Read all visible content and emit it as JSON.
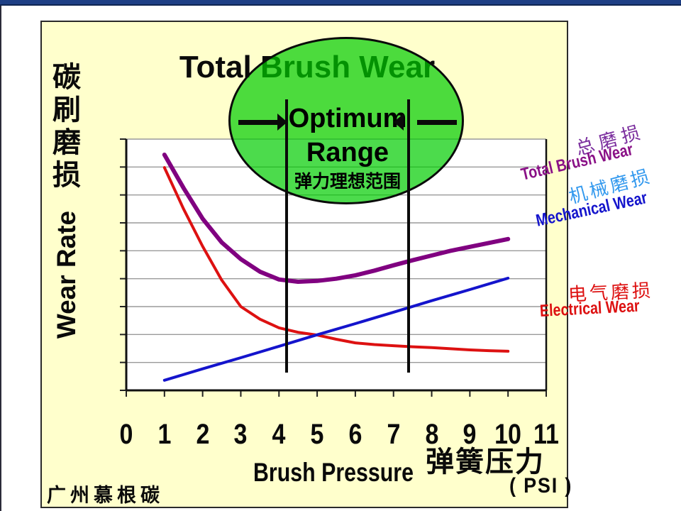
{
  "slide": {
    "title": "Total Brush Wear",
    "footer": "广州慕根碳",
    "colors": {
      "slide_bg": "#FFFFCC",
      "top_bar": "#1E3F85",
      "plot_bg": "#FFFFFF",
      "gridline": "#9A9A9A",
      "ellipse_fill": "rgba(0,204,0,0.70)"
    }
  },
  "y_axis": {
    "label_cn": "碳刷磨损",
    "label_en": "Wear Rate"
  },
  "x_axis": {
    "label_en": "Brush Pressure",
    "label_cn": "弹簧压力",
    "unit": "( PSI )"
  },
  "optimum": {
    "line1": "Optimum",
    "line2": "Range",
    "line3": "弹力理想范围"
  },
  "legend": [
    {
      "cn": "总磨损",
      "en": "Total Brush Wear",
      "color_cn": "#7B2E9E",
      "color_en": "#8A1187"
    },
    {
      "cn": "机械磨损",
      "en": "Mechanical Wear",
      "color_cn": "#3399EE",
      "color_en": "#1414CC"
    },
    {
      "cn": "电气磨损",
      "en": "Electrical Wear",
      "color_cn": "#DD1111",
      "color_en": "#DD1111"
    }
  ],
  "chart_data": {
    "type": "line",
    "title": "Total Brush Wear",
    "xlabel": "Brush Pressure ( PSI )",
    "ylabel": "Wear Rate",
    "xlim": [
      0,
      11
    ],
    "ylim": [
      0,
      9
    ],
    "x_ticks": [
      0,
      1,
      2,
      3,
      4,
      5,
      6,
      7,
      8,
      9,
      10,
      11
    ],
    "grid": "horizontal",
    "legend_position": "right",
    "optimum_range_x": [
      4.2,
      7.4
    ],
    "series": [
      {
        "name": "Total Brush Wear",
        "color": "#800080",
        "width": 6,
        "points": [
          [
            1,
            8.44
          ],
          [
            1.5,
            7.25
          ],
          [
            2,
            6.15
          ],
          [
            2.5,
            5.3
          ],
          [
            3,
            4.7
          ],
          [
            3.5,
            4.25
          ],
          [
            4,
            3.97
          ],
          [
            4.5,
            3.89
          ],
          [
            5,
            3.92
          ],
          [
            5.5,
            4.0
          ],
          [
            6,
            4.12
          ],
          [
            6.5,
            4.29
          ],
          [
            7,
            4.48
          ],
          [
            7.5,
            4.66
          ],
          [
            8,
            4.83
          ],
          [
            8.5,
            5.0
          ],
          [
            9,
            5.14
          ],
          [
            9.5,
            5.28
          ],
          [
            10,
            5.42
          ]
        ]
      },
      {
        "name": "Electrical Wear",
        "color": "#DD1111",
        "width": 4,
        "points": [
          [
            1,
            7.98
          ],
          [
            1.5,
            6.5
          ],
          [
            2,
            5.16
          ],
          [
            2.5,
            3.95
          ],
          [
            3,
            3.0
          ],
          [
            3.5,
            2.55
          ],
          [
            4,
            2.24
          ],
          [
            4.5,
            2.08
          ],
          [
            5,
            1.98
          ],
          [
            5.5,
            1.83
          ],
          [
            6,
            1.7
          ],
          [
            6.5,
            1.64
          ],
          [
            7,
            1.6
          ],
          [
            7.5,
            1.56
          ],
          [
            8,
            1.53
          ],
          [
            8.5,
            1.49
          ],
          [
            9,
            1.45
          ],
          [
            9.5,
            1.42
          ],
          [
            10,
            1.4
          ]
        ]
      },
      {
        "name": "Mechanical Wear",
        "color": "#1414CC",
        "width": 4,
        "points": [
          [
            1,
            0.36
          ],
          [
            2,
            0.77
          ],
          [
            3,
            1.17
          ],
          [
            4,
            1.58
          ],
          [
            5,
            1.99
          ],
          [
            6,
            2.39
          ],
          [
            7,
            2.8
          ],
          [
            8,
            3.21
          ],
          [
            9,
            3.61
          ],
          [
            10,
            4.02
          ]
        ]
      }
    ]
  }
}
